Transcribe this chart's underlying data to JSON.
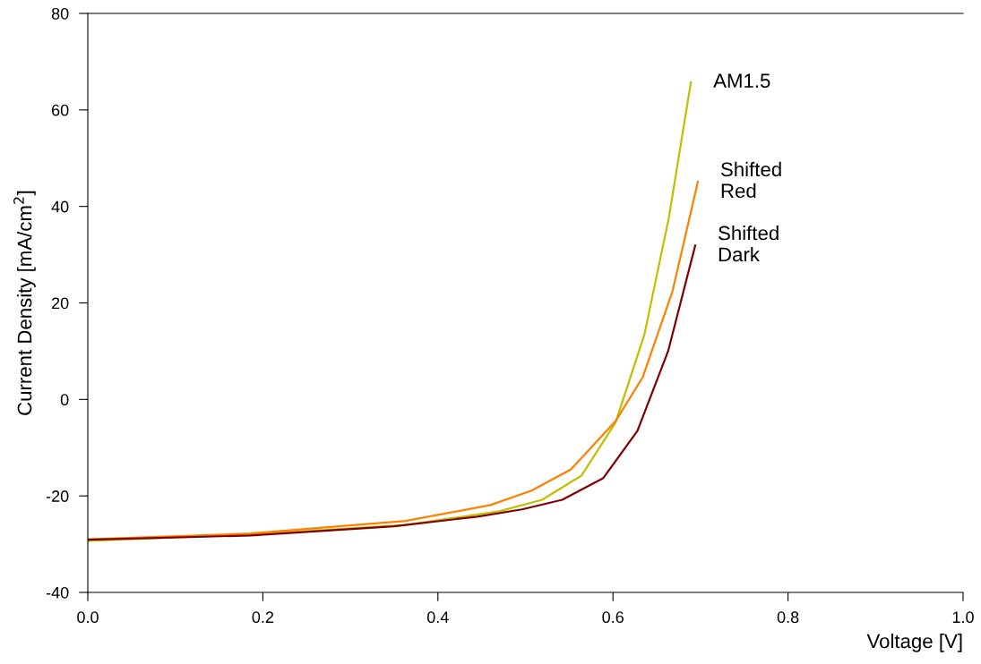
{
  "chart_data": {
    "type": "line",
    "xlabel": "Voltage [V]",
    "ylabel": "Current Density [mA/cm$^{2}$]",
    "xlim": [
      0.0,
      1.0
    ],
    "xticks": [
      {
        "value": 0.0,
        "label": "0.0"
      },
      0.2,
      0.4,
      0.6,
      0.8,
      {
        "value": 1.0,
        "label": "1.0"
      }
    ],
    "ylim": [
      -40,
      80
    ],
    "yticks": [
      -40,
      -20,
      0,
      20,
      40,
      60,
      80
    ],
    "grid": false,
    "legend": false,
    "marker": "none",
    "line_style": "solid",
    "series": [
      {
        "name": "AM1.5",
        "color": "#c0c000",
        "x": [
          0,
          0.186,
          0.363,
          0.47,
          0.519,
          0.564,
          0.603,
          0.636,
          0.664,
          0.689
        ],
        "values": [
          -29.3,
          -28.0,
          -26.0,
          -23.2,
          -20.8,
          -15.8,
          -4.8,
          13.5,
          37.8,
          65.7
        ]
      },
      {
        "name": "Shifted\nRed",
        "color": "#ff8000",
        "x": [
          0,
          0.186,
          0.363,
          0.46,
          0.507,
          0.552,
          0.603,
          0.634,
          0.668,
          0.697
        ],
        "values": [
          -29.0,
          -27.8,
          -25.2,
          -21.9,
          -18.9,
          -14.5,
          -4.5,
          4.6,
          22.4,
          45.1
        ]
      },
      {
        "name": "Shifted\nDark",
        "color": "#800000",
        "x": [
          0,
          0.186,
          0.35,
          0.445,
          0.496,
          0.542,
          0.589,
          0.628,
          0.663,
          0.694
        ],
        "values": [
          -29.1,
          -28.2,
          -26.3,
          -24.3,
          -22.8,
          -20.8,
          -16.3,
          -6.5,
          10.0,
          31.9
        ]
      }
    ]
  }
}
